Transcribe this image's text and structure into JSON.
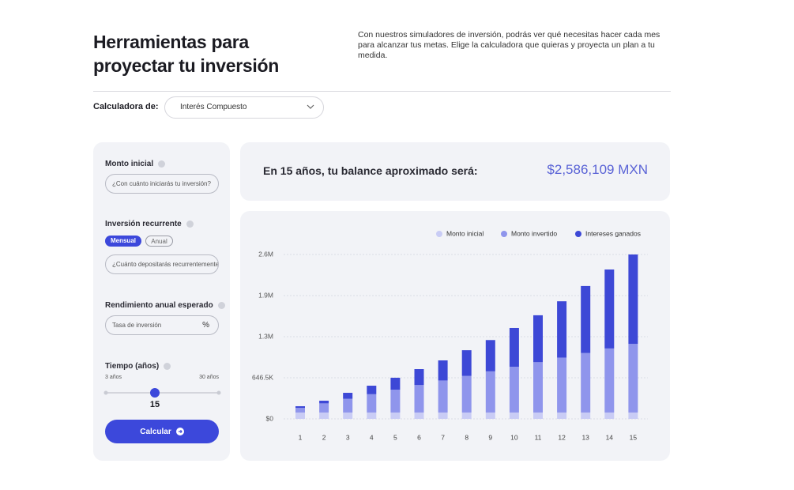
{
  "header": {
    "title_lines": [
      "Herramientas para",
      "proyectar tu inversión"
    ],
    "description": "Con nuestros simuladores de inversión, podrás ver qué necesitas hacer cada mes para alcanzar tus metas. Elige la calculadora que quieras y proyecta un plan a tu medida."
  },
  "calculator": {
    "label": "Calculadora de:",
    "selected": "Interés Compuesto"
  },
  "form": {
    "initial": {
      "label": "Monto inicial",
      "placeholder": "¿Con cuánto iniciarás tu inversión?"
    },
    "recurring": {
      "label": "Inversión recurrente",
      "options": [
        "Mensual",
        "Anual"
      ],
      "placeholder": "¿Cuánto depositarás recurrentemente"
    },
    "rate": {
      "label": "Rendimiento anual esperado",
      "placeholder": "Tasa de inversión",
      "unit": "%"
    },
    "time": {
      "label": "Tiempo (años)",
      "min_label": "3 años",
      "max_label": "30 años",
      "value": 15
    },
    "button": "Calcular"
  },
  "result": {
    "text": "En 15 años, tu balance aproximado será:",
    "value": "$2,586,109 MXN"
  },
  "chart_data": {
    "type": "stacked_bar",
    "categories": [
      "1",
      "2",
      "3",
      "4",
      "5",
      "6",
      "7",
      "8",
      "9",
      "10",
      "11",
      "12",
      "13",
      "14",
      "15"
    ],
    "series": [
      {
        "name": "Monto inicial",
        "color": "#c9ccf5",
        "values": [
          100000,
          100000,
          100000,
          100000,
          100000,
          100000,
          100000,
          100000,
          100000,
          100000,
          100000,
          100000,
          100000,
          100000,
          100000
        ]
      },
      {
        "name": "Monto invertido",
        "color": "#8f95ec",
        "values": [
          72000,
          144000,
          216000,
          288000,
          360000,
          432000,
          504000,
          576000,
          648000,
          720000,
          792000,
          864000,
          936000,
          1008000,
          1080000
        ]
      },
      {
        "name": "Intereses ganados",
        "color": "#3d48d6",
        "values": [
          27000,
          42000,
          94000,
          134000,
          187000,
          251000,
          316000,
          404000,
          492000,
          610000,
          738000,
          886000,
          1054000,
          1242000,
          1406109
        ]
      }
    ],
    "ylim": [
      0,
      2586109
    ],
    "yticks": [
      {
        "value": 0,
        "label": "$0"
      },
      {
        "value": 646527.25,
        "label": "646.5K"
      },
      {
        "value": 1293054.5,
        "label": "1.3M"
      },
      {
        "value": 1939581.75,
        "label": "1.9M"
      },
      {
        "value": 2586109,
        "label": "2.6M"
      }
    ],
    "grid": true,
    "legend": "top-right"
  }
}
